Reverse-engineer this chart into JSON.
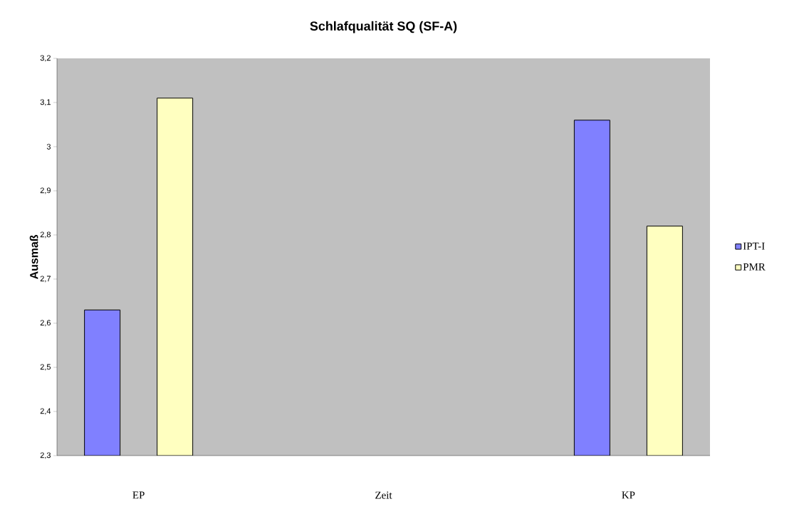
{
  "chart_data": {
    "type": "bar",
    "title": "Schlafqualität SQ (SF-A)",
    "xlabel": "Zeit",
    "ylabel": "Ausmaß",
    "categories": [
      "EP",
      null,
      null,
      "KP"
    ],
    "series": [
      {
        "name": "IPT-I",
        "color": "#8080ff",
        "values": [
          2.63,
          null,
          null,
          3.06
        ]
      },
      {
        "name": "PMR",
        "color": "#ffffc0",
        "values": [
          3.11,
          null,
          null,
          2.82
        ]
      }
    ],
    "ylim": [
      2.3,
      3.2
    ],
    "yticks": [
      {
        "value": 2.3,
        "label": "2,3"
      },
      {
        "value": 2.4,
        "label": "2,4"
      },
      {
        "value": 2.5,
        "label": "2,5"
      },
      {
        "value": 2.6,
        "label": "2,6"
      },
      {
        "value": 2.7,
        "label": "2,7"
      },
      {
        "value": 2.8,
        "label": "2,8"
      },
      {
        "value": 2.9,
        "label": "2,9"
      },
      3,
      {
        "value": 3.1,
        "label": "3,1"
      },
      {
        "value": 3.2,
        "label": "3,2"
      }
    ],
    "legend": "right",
    "grid": false
  }
}
